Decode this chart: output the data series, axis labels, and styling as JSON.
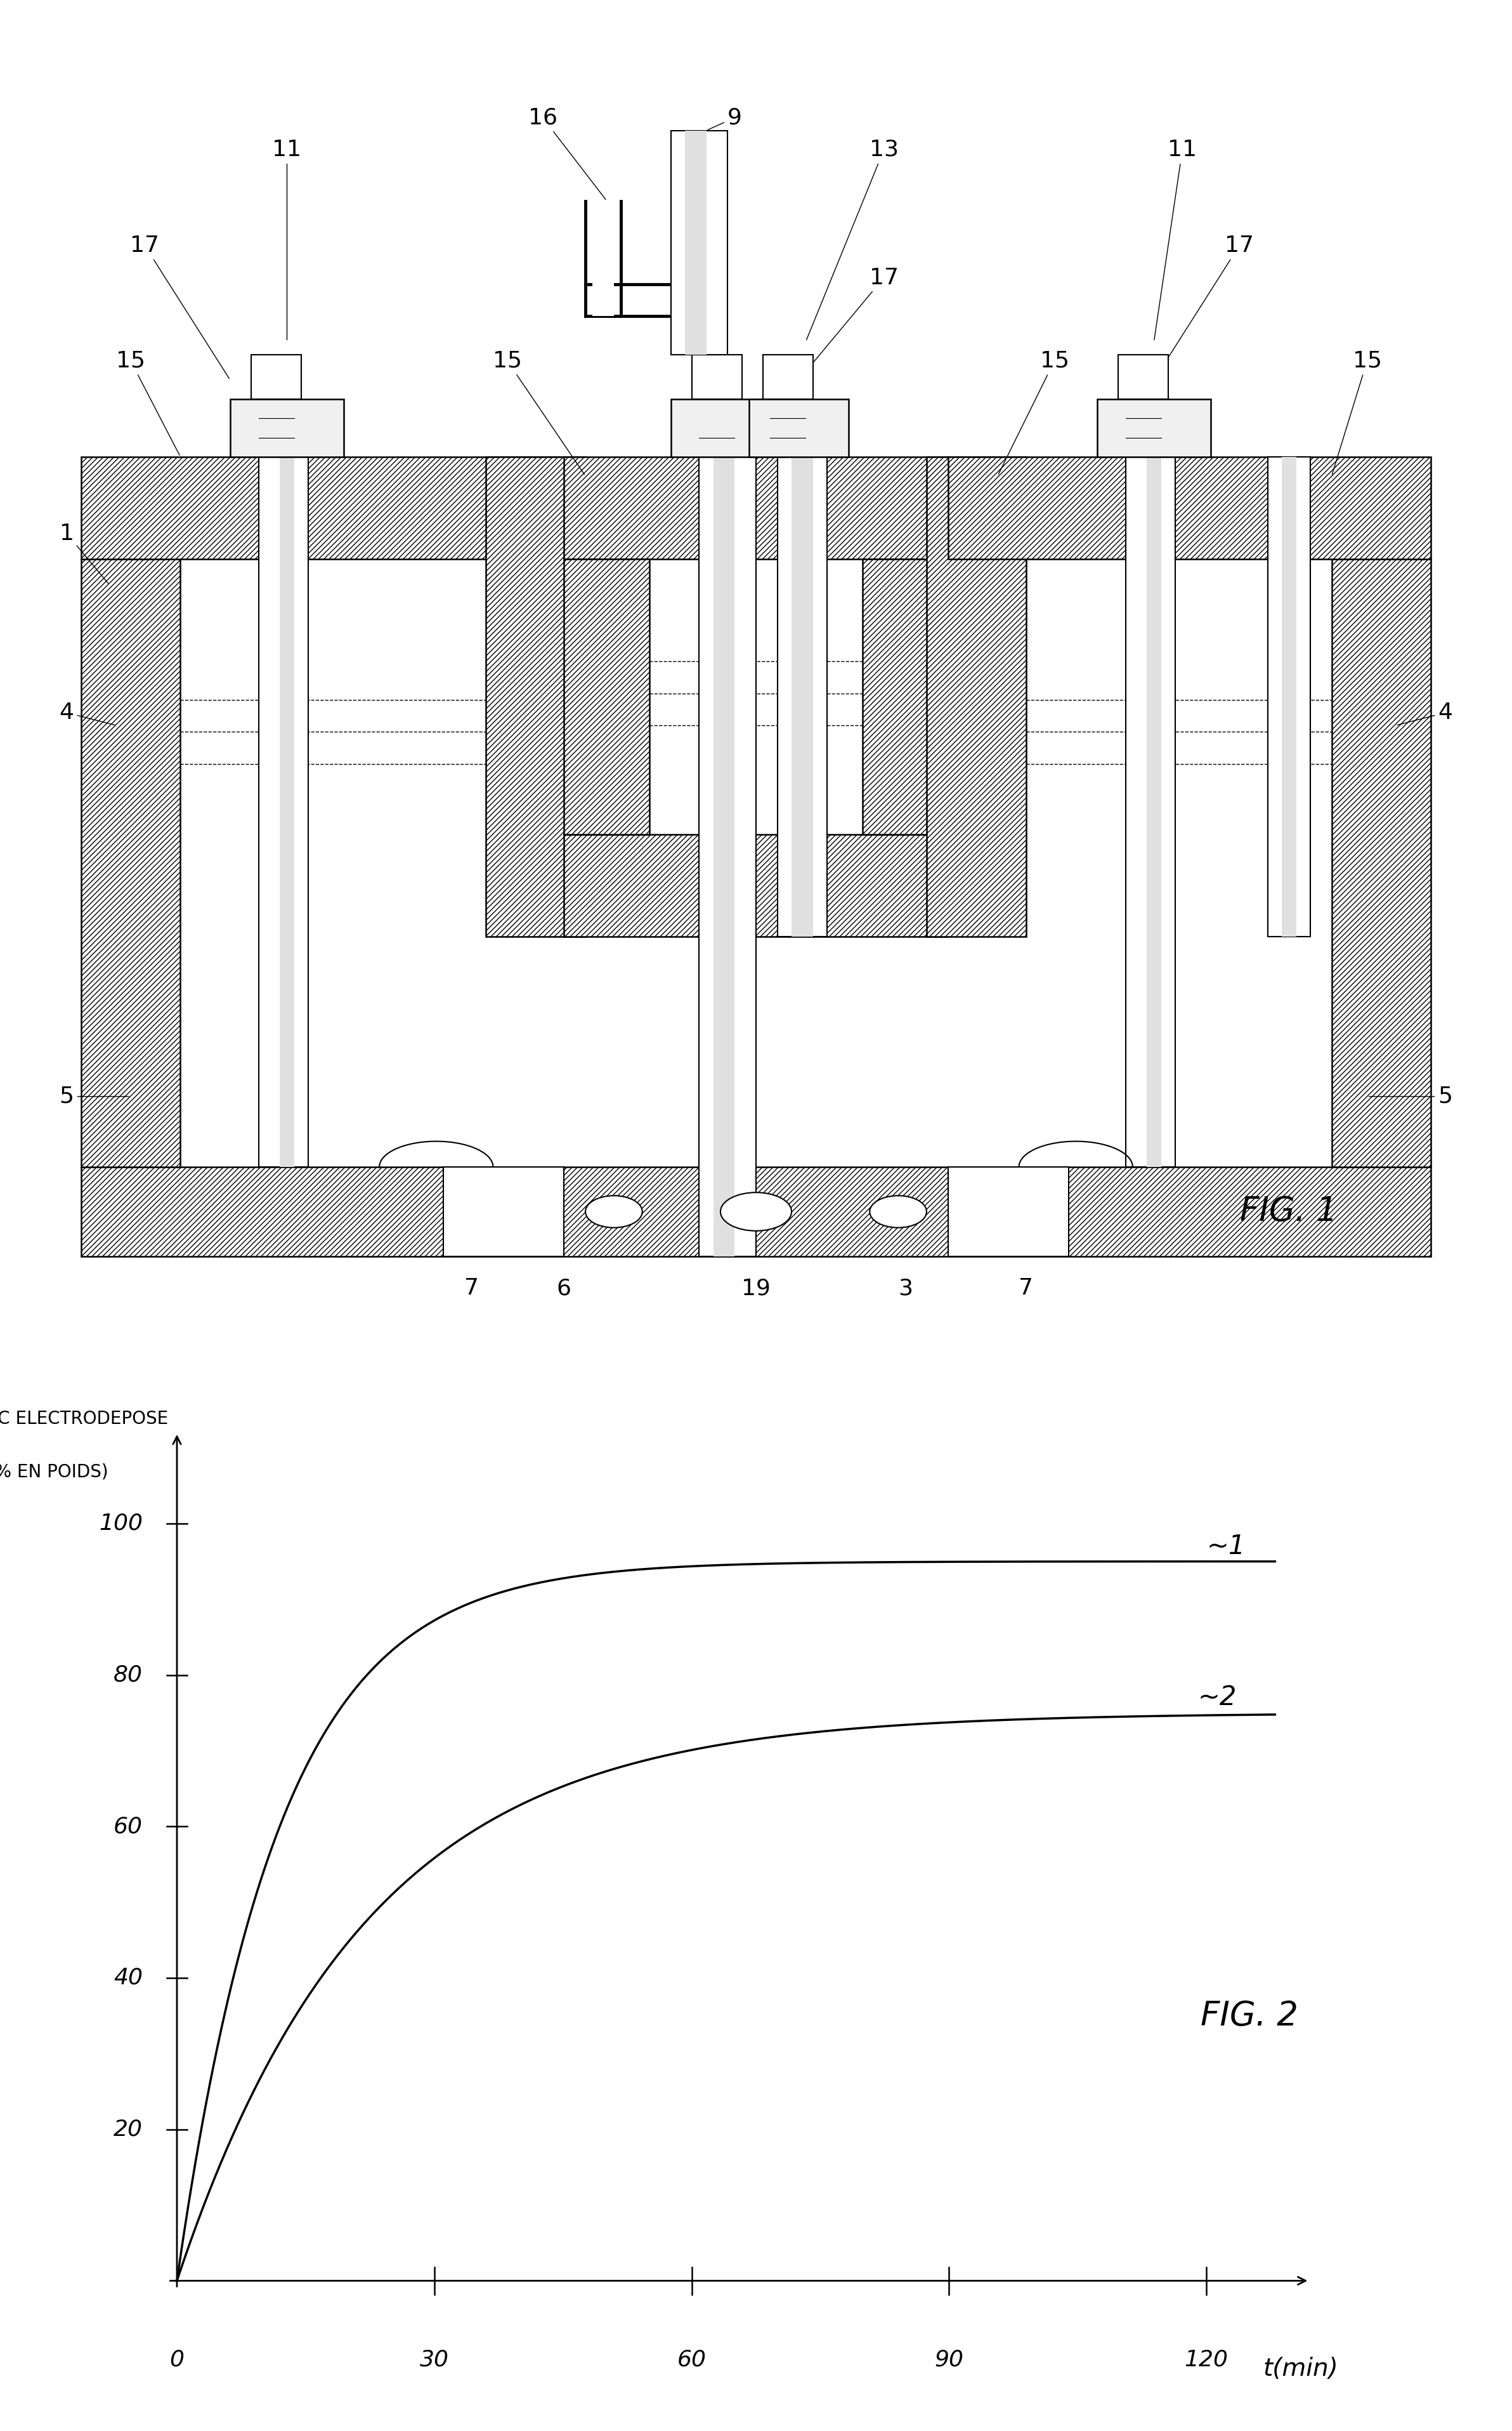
{
  "fig_width": 23.84,
  "fig_height": 38.31,
  "bg_color": "#ffffff",
  "fig1_title": "FIG. 1",
  "fig2_title": "FIG. 2",
  "fig2_ylabel_line1": "TC ELECTRODEPOSE",
  "fig2_ylabel_line2": "(% EN POIDS)",
  "fig2_xlabel": "t(min)",
  "fig2_xticks": [
    0,
    30,
    60,
    90,
    120
  ],
  "fig2_yticks": [
    0,
    20,
    40,
    60,
    80,
    100
  ],
  "curve1_label": "1",
  "curve2_label": "2",
  "curve1_asymptote": 95,
  "curve2_asymptote": 75,
  "curve1_tau": 12,
  "curve2_tau": 22,
  "line_color": "#000000",
  "label_fontsize": 28,
  "tick_fontsize": 26,
  "fig_label_fontsize": 38,
  "annotation_fontsize": 30,
  "number_label_fontsize": 26
}
